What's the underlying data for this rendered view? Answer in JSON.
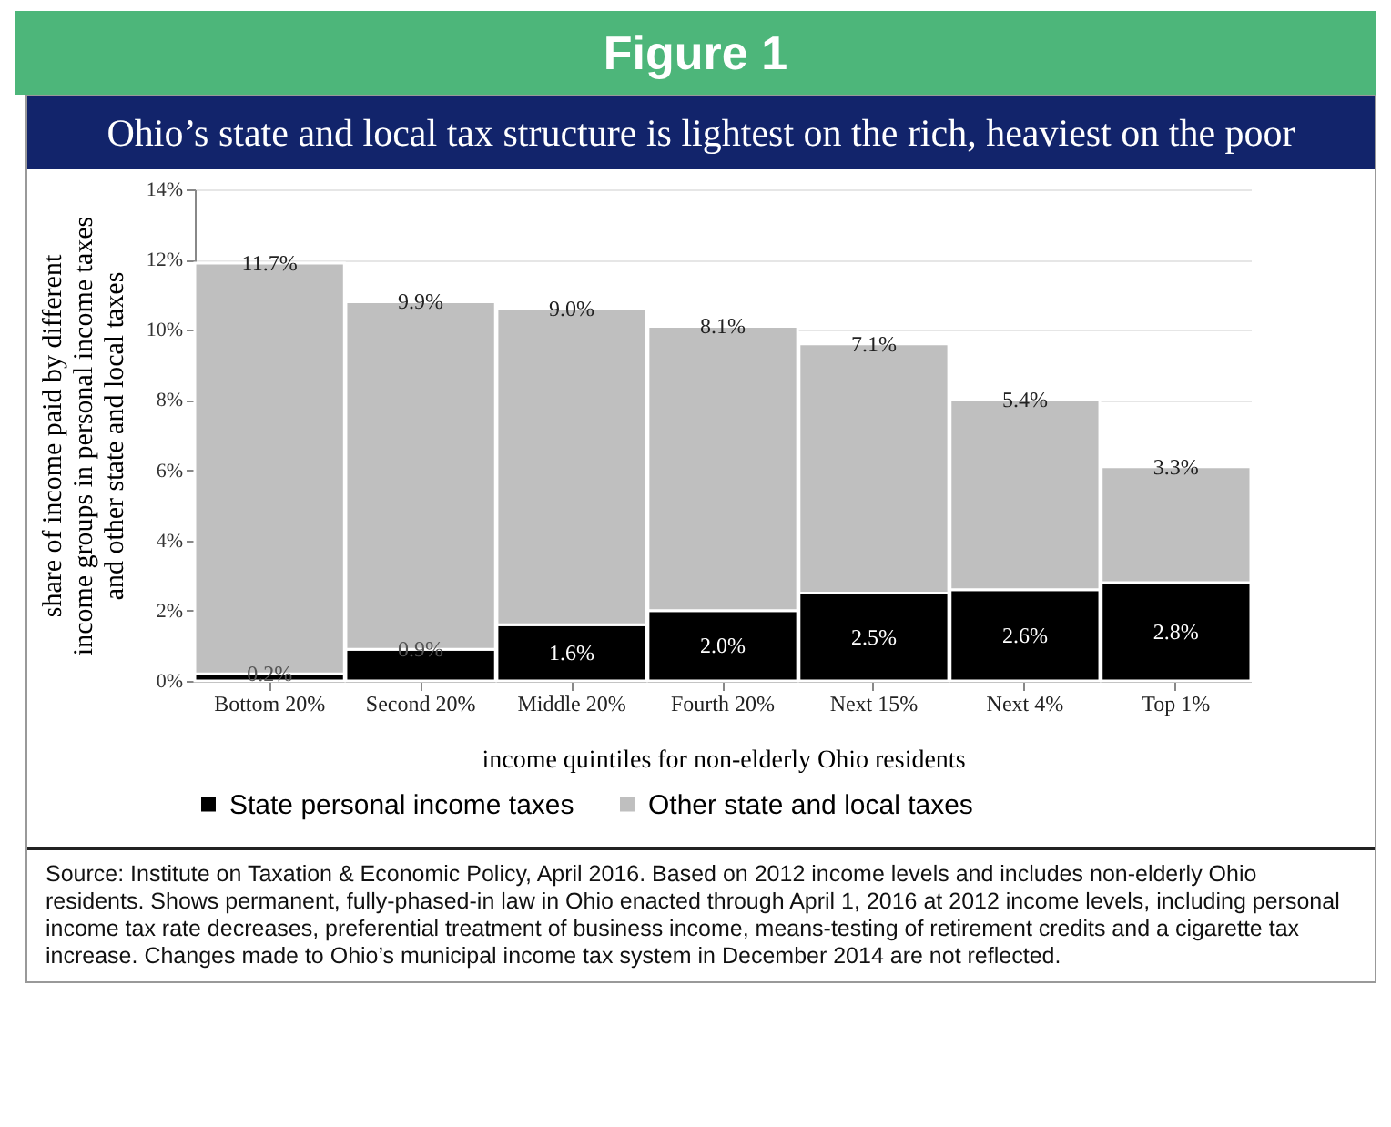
{
  "chart_data": {
    "type": "bar",
    "title": "Figure 1",
    "subtitle": "Ohio’s state and local tax structure is lightest on the rich, heaviest on the poor",
    "xlabel": "income quintiles for non-elderly Ohio residents",
    "ylabel": "share of income paid by different income groups in personal income taxes and other state and local taxes",
    "categories": [
      "Bottom 20%",
      "Second  20%",
      "Middle 20%",
      "Fourth 20%",
      "Next 15%",
      "Next 4%",
      "Top 1%"
    ],
    "stacked": true,
    "series": [
      {
        "name": "State personal income taxes",
        "color": "#000000",
        "values": [
          0.2,
          0.9,
          1.6,
          2.0,
          2.5,
          2.6,
          2.8
        ],
        "value_labels": [
          "0.2%",
          "0.9%",
          "1.6%",
          "2.0%",
          "2.5%",
          "2.6%",
          "2.8%"
        ]
      },
      {
        "name": "Other state and local taxes",
        "color": "#bfbfbf",
        "values": [
          11.7,
          9.9,
          9.0,
          8.1,
          7.1,
          5.4,
          3.3
        ],
        "value_labels": [
          "11.7%",
          "9.9%",
          "9.0%",
          "8.1%",
          "7.1%",
          "5.4%",
          "3.3%"
        ]
      }
    ],
    "ylim": [
      0,
      14
    ],
    "yticks": [
      {
        "value": 0,
        "label": "0%"
      },
      {
        "value": 2,
        "label": "2%"
      },
      {
        "value": 4,
        "label": "4%"
      },
      {
        "value": 6,
        "label": "6%"
      },
      {
        "value": 8,
        "label": "8%"
      },
      {
        "value": 10,
        "label": "10%"
      },
      {
        "value": 12,
        "label": "12%"
      },
      {
        "value": 14,
        "label": "14%"
      }
    ],
    "grid": "y",
    "legend": "bottom",
    "annotations": [
      "Source: Institute on Taxation & Economic Policy, April 2016.  Based on 2012 income levels and includes non-elderly Ohio residents. Shows permanent, fully-phased-in law in Ohio enacted through April 1, 2016 at 2012 income levels, including personal income tax rate decreases, preferential treatment of business income, means-testing of retirement credits and a cigarette tax increase.  Changes made to Ohio’s municipal income tax system in December 2014 are not reflected."
    ]
  }
}
